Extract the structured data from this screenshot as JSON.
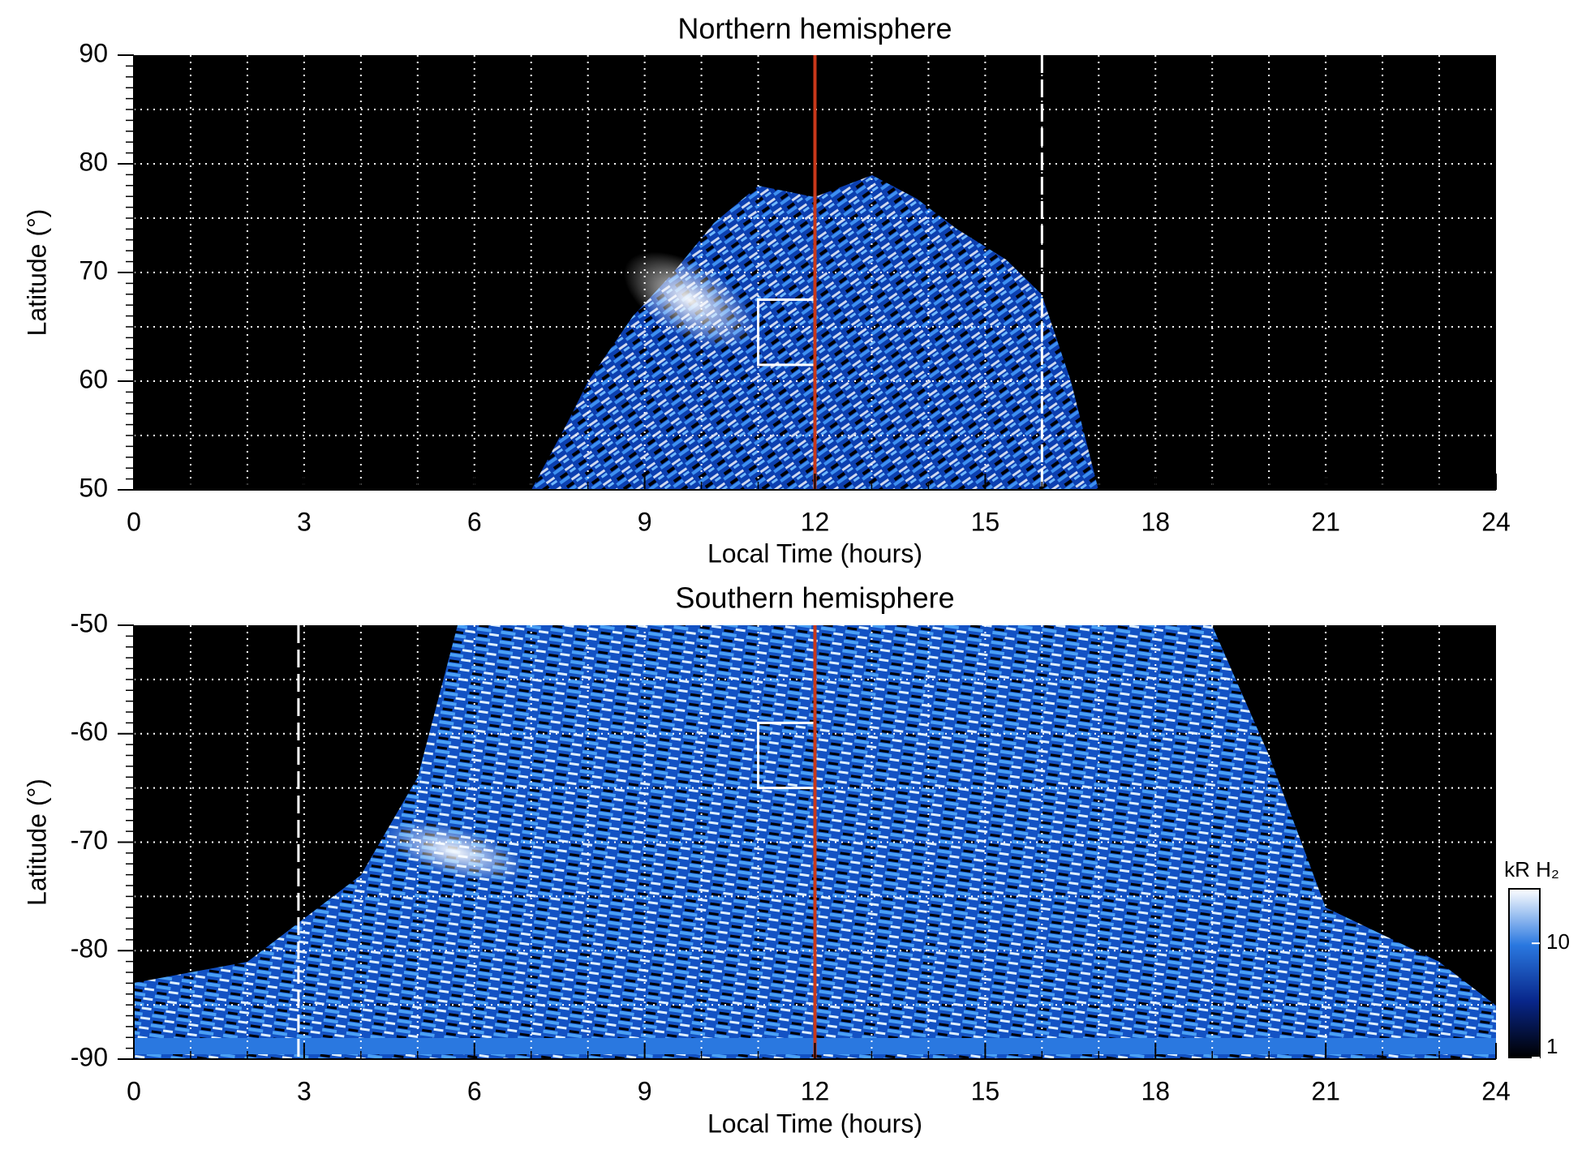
{
  "chart_data": [
    {
      "type": "heatmap",
      "title": "Northern hemisphere",
      "xlabel": "Local Time (hours)",
      "ylabel": "Latitude (°)",
      "xlim": [
        0,
        24
      ],
      "xticks": [
        0,
        3,
        6,
        9,
        12,
        15,
        18,
        21,
        24
      ],
      "ylim": [
        50,
        90
      ],
      "yticks": [
        50,
        60,
        70,
        80,
        90
      ],
      "grid": true,
      "x_grid_step": 1,
      "y_grid_step": 5,
      "noon_line": {
        "x": 12,
        "color": "#c8381a"
      },
      "dashed_line_x": 16,
      "box": {
        "x": [
          11,
          12
        ],
        "y": [
          61.5,
          67.5
        ]
      }
    },
    {
      "type": "heatmap",
      "title": "Southern hemisphere",
      "xlabel": "Local Time (hours)",
      "ylabel": "Latitude (°)",
      "xlim": [
        0,
        24
      ],
      "xticks": [
        0,
        3,
        6,
        9,
        12,
        15,
        18,
        21,
        24
      ],
      "ylim": [
        -90,
        -50
      ],
      "yticks": [
        -90,
        -80,
        -70,
        -60,
        -50
      ],
      "grid": true,
      "x_grid_step": 1,
      "y_grid_step": 5,
      "noon_line": {
        "x": 12,
        "color": "#c8381a"
      },
      "dashed_line_x": 2.9,
      "box": {
        "x": [
          11,
          12
        ],
        "y": [
          -65,
          -59
        ]
      }
    }
  ],
  "colorbar": {
    "label": "kR H₂",
    "scale": "log",
    "lim": [
      1,
      30
    ],
    "ticks": [
      1,
      10
    ],
    "colors": [
      "#000000",
      "#08268a",
      "#2a78e0",
      "#ffffff"
    ]
  }
}
